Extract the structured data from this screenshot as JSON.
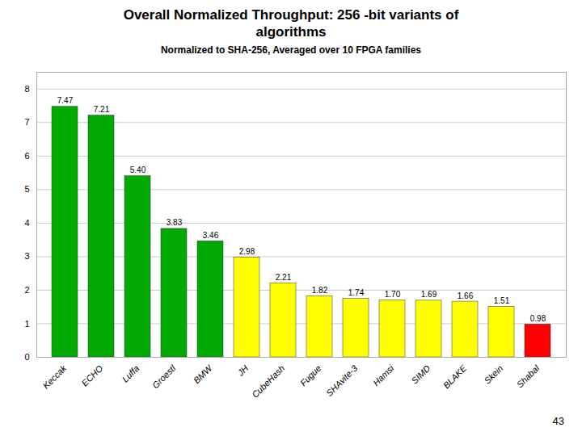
{
  "chart_data": {
    "type": "bar",
    "title": "Overall Normalized Throughput: 256 -bit variants of\nalgorithms",
    "subtitle": "Normalized to SHA-256, Averaged over 10 FPGA families",
    "categories": [
      "Keccak",
      "ECHO",
      "Luffa",
      "Groestl",
      "BMW",
      "JH",
      "CubeHash",
      "Fugue",
      "SHAvite-3",
      "Hamsi",
      "SIMD",
      "BLAKE",
      "Skein",
      "Shabal"
    ],
    "values": [
      7.47,
      7.21,
      5.4,
      3.83,
      3.46,
      2.98,
      2.21,
      1.82,
      1.74,
      1.7,
      1.69,
      1.66,
      1.51,
      0.98
    ],
    "value_labels": [
      "7.47",
      "7.21",
      "5.40",
      "3.83",
      "3.46",
      "2.98",
      "2.21",
      "1.82",
      "1.74",
      "1.70",
      "1.69",
      "1.66",
      "1.51",
      "0.98"
    ],
    "colors": [
      "#00aa00",
      "#00aa00",
      "#00aa00",
      "#00aa00",
      "#00aa00",
      "#ffff00",
      "#ffff00",
      "#ffff00",
      "#ffff00",
      "#ffff00",
      "#ffff00",
      "#ffff00",
      "#ffff00",
      "#ff0000"
    ],
    "ylim": [
      0,
      8.5
    ],
    "yticks": [
      0,
      1,
      2,
      3,
      4,
      5,
      6,
      7,
      8
    ],
    "grid": true,
    "data_labels": true,
    "annotations": [
      "43"
    ]
  }
}
